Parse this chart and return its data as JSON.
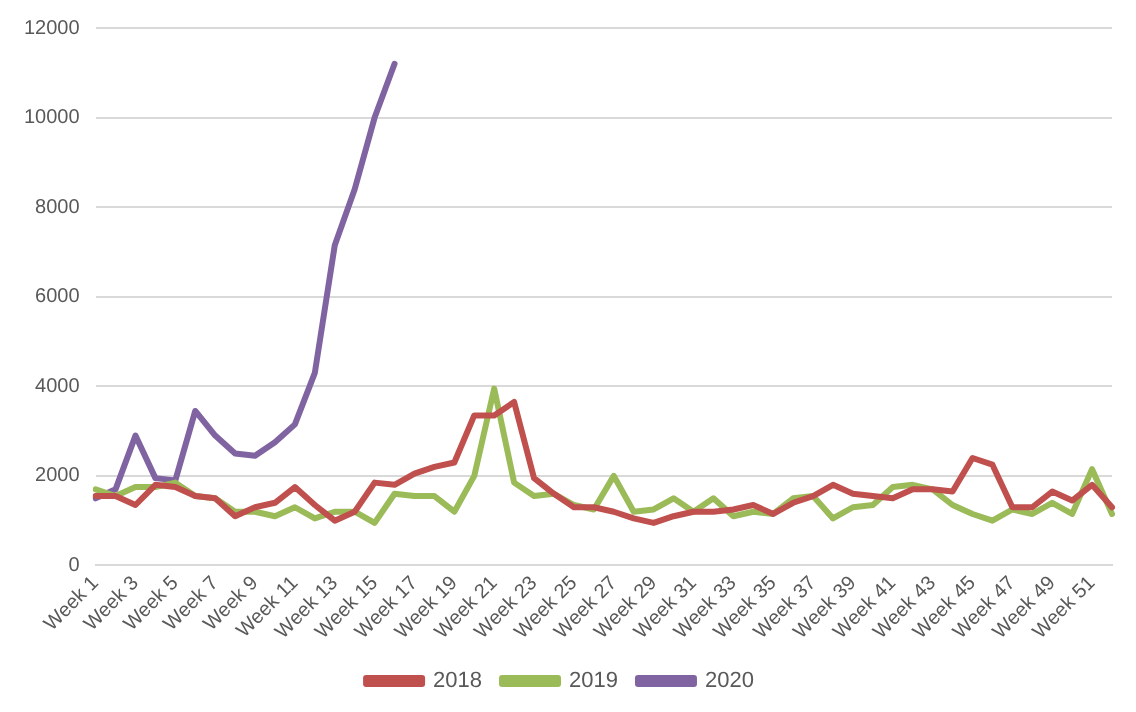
{
  "chart_data": {
    "type": "line",
    "categories": [
      "Week 1",
      null,
      "Week 3",
      null,
      "Week 5",
      null,
      "Week 7",
      null,
      "Week 9",
      null,
      "Week 11",
      null,
      "Week 13",
      null,
      "Week 15",
      null,
      "Week 17",
      null,
      "Week 19",
      null,
      "Week 21",
      null,
      "Week 23",
      null,
      "Week 25",
      null,
      "Week 27",
      null,
      "Week 29",
      null,
      "Week 31",
      null,
      "Week 33",
      null,
      "Week 35",
      null,
      "Week 37",
      null,
      "Week 39",
      null,
      "Week 41",
      null,
      "Week 43",
      null,
      "Week 45",
      null,
      "Week 47",
      null,
      "Week 49",
      null,
      "Week 51",
      null
    ],
    "series": [
      {
        "name": "2018",
        "color": "#c0504d",
        "values": [
          1550,
          1550,
          1350,
          1800,
          1750,
          1550,
          1500,
          1100,
          1300,
          1400,
          1750,
          1350,
          1000,
          1200,
          1850,
          1800,
          2050,
          2200,
          2300,
          3350,
          3350,
          3650,
          1950,
          1600,
          1300,
          1300,
          1200,
          1050,
          950,
          1100,
          1200,
          1200,
          1250,
          1350,
          1150,
          1400,
          1550,
          1800,
          1600,
          1550,
          1500,
          1700,
          1700,
          1650,
          2400,
          2250,
          1300,
          1300,
          1650,
          1450,
          1800,
          1300
        ]
      },
      {
        "name": "2019",
        "color": "#9bbb59",
        "values": [
          1700,
          1550,
          1750,
          1750,
          1850,
          1550,
          1500,
          1200,
          1200,
          1100,
          1300,
          1050,
          1200,
          1200,
          950,
          1600,
          1550,
          1550,
          1200,
          2000,
          3950,
          1850,
          1550,
          1600,
          1350,
          1250,
          2000,
          1200,
          1250,
          1500,
          1200,
          1500,
          1100,
          1200,
          1150,
          1500,
          1550,
          1050,
          1300,
          1350,
          1750,
          1800,
          1700,
          1350,
          1150,
          1000,
          1250,
          1150,
          1400,
          1150,
          2150,
          1150
        ]
      },
      {
        "name": "2020",
        "color": "#8064a2",
        "values": [
          1500,
          1700,
          2900,
          1950,
          1900,
          3450,
          2900,
          2500,
          2450,
          2750,
          3150,
          4300,
          7150,
          8400,
          10000,
          11200,
          null,
          null,
          null,
          null,
          null,
          null,
          null,
          null,
          null,
          null,
          null,
          null,
          null,
          null,
          null,
          null,
          null,
          null,
          null,
          null,
          null,
          null,
          null,
          null,
          null,
          null,
          null,
          null,
          null,
          null,
          null,
          null,
          null,
          null,
          null,
          null
        ]
      }
    ],
    "ylim": [
      0,
      12000
    ],
    "yticks": [
      0,
      2000,
      4000,
      6000,
      8000,
      10000,
      12000
    ],
    "grid": "y",
    "legend": "bottom",
    "marker": "none",
    "line_style": "solid"
  }
}
